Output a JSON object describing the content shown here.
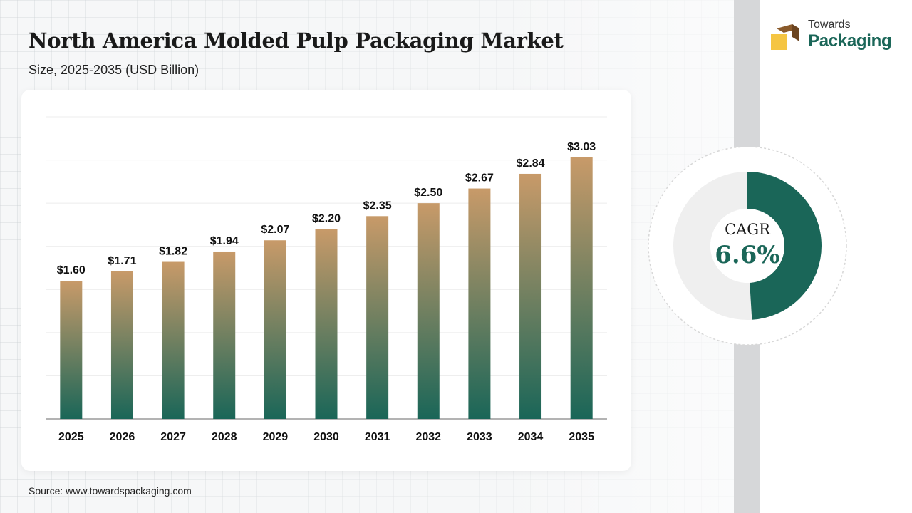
{
  "header": {
    "title": "North America Molded Pulp Packaging Market",
    "subtitle": "Size, 2025-2035 (USD Billion)"
  },
  "footer": {
    "source": "Source: www.towardspackaging.com"
  },
  "logo": {
    "line1": "Towards",
    "line2": "Packaging",
    "icon": "box-logo-icon"
  },
  "cagr": {
    "label": "CAGR",
    "value": "6.6%",
    "fraction": 0.49
  },
  "colors": {
    "bar_top": "#c89a69",
    "bar_bottom": "#1a6658",
    "accent": "#1a6658",
    "donut_track": "#efefef"
  },
  "chart_data": {
    "type": "bar",
    "categories": [
      "2025",
      "2026",
      "2027",
      "2028",
      "2029",
      "2030",
      "2031",
      "2032",
      "2033",
      "2034",
      "2035"
    ],
    "values": [
      1.6,
      1.71,
      1.82,
      1.94,
      2.07,
      2.2,
      2.35,
      2.5,
      2.67,
      2.84,
      3.03
    ],
    "value_labels": [
      "$1.60",
      "$1.71",
      "$1.82",
      "$1.94",
      "$2.07",
      "$2.20",
      "$2.35",
      "$2.50",
      "$2.67",
      "$2.84",
      "$3.03"
    ],
    "title": "North America Molded Pulp Packaging Market",
    "subtitle": "Size, 2025-2035 (USD Billion)",
    "xlabel": "",
    "ylabel": "",
    "ylim": [
      0,
      3.5
    ],
    "grid": true,
    "legend": "none"
  }
}
